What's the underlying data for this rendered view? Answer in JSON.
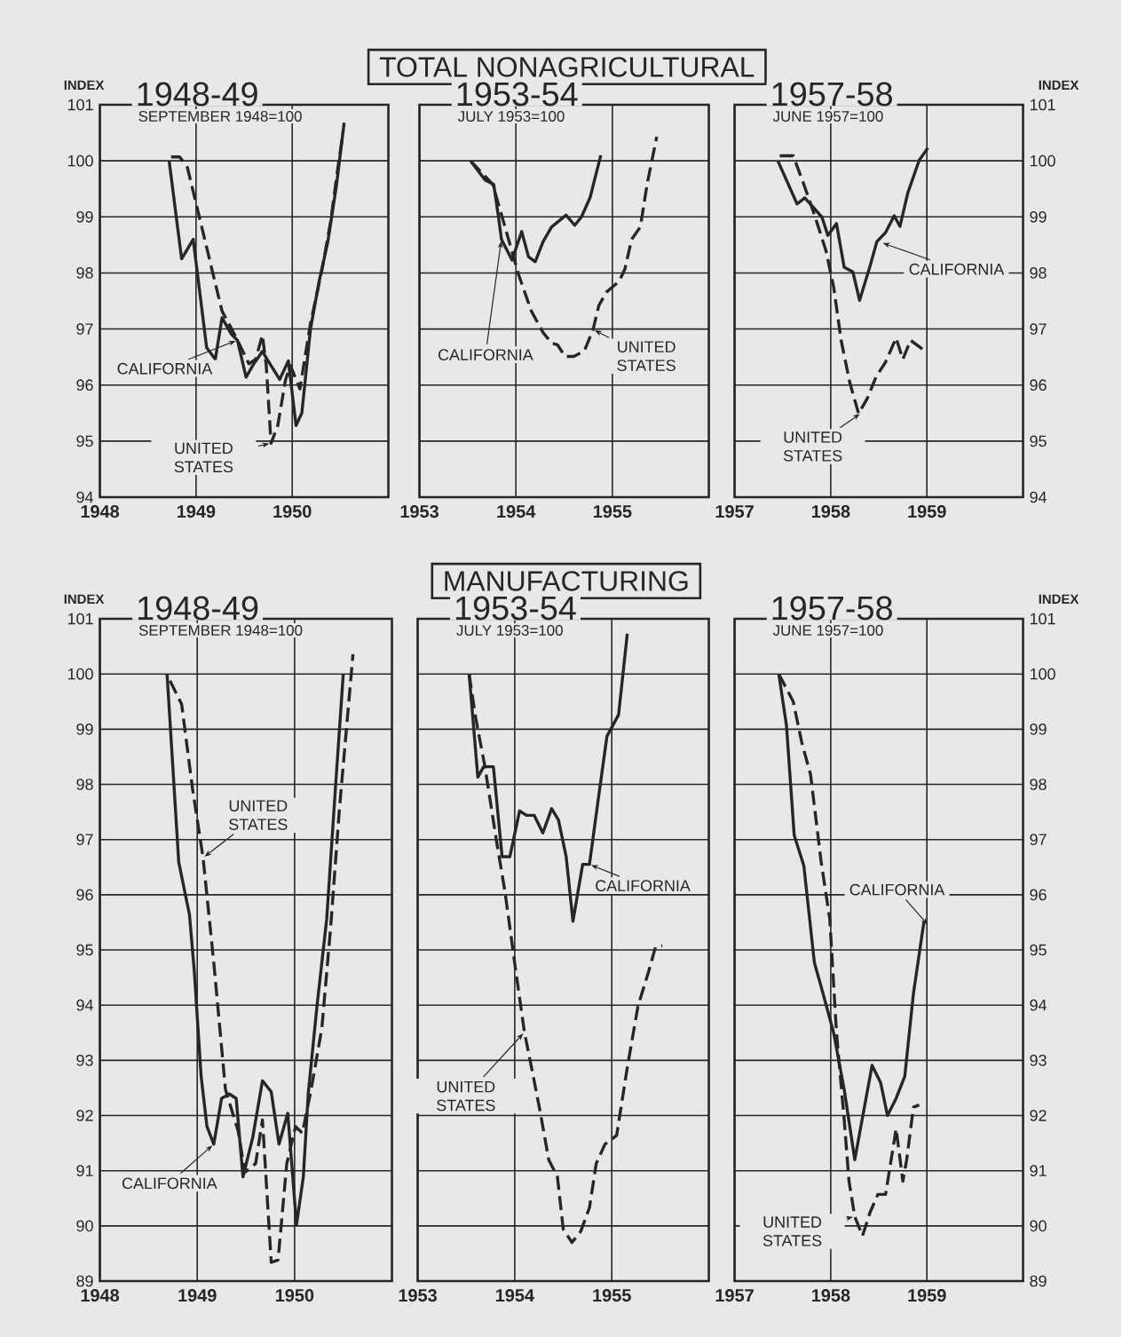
{
  "chart_data": [
    {
      "type": "line",
      "title": "1948-49",
      "subtitle": "SEPTEMBER 1948=100",
      "ylabel": "INDEX",
      "grid": true,
      "xlim": [
        1948,
        1951
      ],
      "ylim": [
        94,
        101
      ],
      "xticks": [
        1948,
        1949,
        1950
      ],
      "yticks": [
        94,
        95,
        96,
        97,
        98,
        99,
        100,
        101
      ],
      "annotations": [
        {
          "text": "CALIFORNIA",
          "x": 1949.43,
          "y": 96.8
        },
        {
          "text": "UNITED STATES",
          "x": 1949.78,
          "y": 94.96
        }
      ],
      "series": [
        {
          "color": "#262626",
          "line_style": "solid",
          "x": [
            1948.72,
            1948.85,
            1948.97,
            1949.11,
            1949.2,
            1949.27,
            1949.37,
            1949.43,
            1949.52,
            1949.59,
            1949.69,
            1949.76,
            1949.87,
            1949.96,
            1950.04,
            1950.1,
            1950.19,
            1950.28,
            1950.37,
            1950.46,
            1950.54
          ],
          "values": [
            100.0,
            98.25,
            98.6,
            96.67,
            96.46,
            97.2,
            96.9,
            96.8,
            96.14,
            96.35,
            96.6,
            96.4,
            96.1,
            96.43,
            95.28,
            95.5,
            97.0,
            97.85,
            98.55,
            99.56,
            100.68
          ]
        },
        {
          "color": "#262626",
          "line_style": "dashed",
          "x": [
            1948.74,
            1948.83,
            1948.91,
            1949.03,
            1949.15,
            1949.27,
            1949.37,
            1949.43,
            1949.55,
            1949.62,
            1949.69,
            1949.73,
            1949.78,
            1949.85,
            1949.93,
            1949.98,
            1950.08,
            1950.19,
            1950.31,
            1950.4,
            1950.48,
            1950.53
          ],
          "values": [
            100.07,
            100.07,
            99.88,
            99.03,
            98.17,
            97.32,
            97.0,
            96.8,
            96.38,
            96.46,
            96.89,
            96.35,
            94.96,
            95.28,
            96.09,
            96.35,
            95.93,
            97.1,
            98.06,
            98.92,
            99.94,
            100.52
          ]
        }
      ]
    },
    {
      "type": "line",
      "title": "1953-54",
      "subtitle": "JULY 1953=100",
      "grid": true,
      "tick_labels": "x",
      "xlim": [
        1953,
        1956
      ],
      "ylim": [
        94,
        101
      ],
      "xticks": [
        1953,
        1954,
        1955
      ],
      "yticks": [
        94,
        95,
        96,
        97,
        98,
        99,
        100,
        101
      ],
      "annotations": [
        "TOTAL NONAGRICULTURAL",
        {
          "text": "CALIFORNIA",
          "x": 1953.85,
          "y": 98.6
        },
        {
          "text": "UNITED STATES",
          "x": 1954.8,
          "y": 96.99
        }
      ],
      "series": [
        {
          "color": "#262626",
          "line_style": "solid",
          "x": [
            1953.53,
            1953.68,
            1953.77,
            1953.82,
            1953.85,
            1953.96,
            1954.06,
            1954.13,
            1954.2,
            1954.28,
            1954.37,
            1954.52,
            1954.61,
            1954.68,
            1954.77,
            1954.88
          ],
          "values": [
            100.0,
            99.66,
            99.58,
            98.99,
            98.6,
            98.23,
            98.74,
            98.29,
            98.2,
            98.55,
            98.82,
            99.03,
            98.85,
            99.0,
            99.35,
            100.1
          ]
        },
        {
          "color": "#262626",
          "line_style": "dashed",
          "x": [
            1953.53,
            1953.76,
            1953.85,
            1953.94,
            1954.03,
            1954.16,
            1954.28,
            1954.37,
            1954.43,
            1954.51,
            1954.6,
            1954.71,
            1954.8,
            1954.86,
            1954.94,
            1955.07,
            1955.13,
            1955.2,
            1955.29,
            1955.36,
            1955.46
          ],
          "values": [
            100.0,
            99.58,
            99.04,
            98.5,
            97.96,
            97.32,
            96.94,
            96.75,
            96.72,
            96.51,
            96.51,
            96.61,
            96.99,
            97.42,
            97.66,
            97.85,
            98.07,
            98.6,
            98.82,
            99.58,
            100.43
          ]
        }
      ]
    },
    {
      "type": "line",
      "title": "1957-58",
      "subtitle": "JUNE 1957=100",
      "grid": true,
      "xlim": [
        1957,
        1960
      ],
      "y2lim": [
        94,
        101
      ],
      "y2label": "INDEX",
      "xticks": [
        1957,
        1958,
        1959
      ],
      "y2ticks": [
        94,
        95,
        96,
        97,
        98,
        99,
        100,
        101
      ],
      "annotations": [
        "CALIFORNIA",
        "UNITED STATES"
      ],
      "series": [
        {
          "color": "#262626",
          "line_style": "solid",
          "axis": "y2",
          "x": [
            1957.45,
            1957.65,
            1957.73,
            1957.83,
            1957.91,
            1957.97,
            1958.06,
            1958.14,
            1958.23,
            1958.3,
            1958.41,
            1958.48,
            1958.57,
            1958.66,
            1958.72,
            1958.8,
            1958.92,
            1959.01
          ],
          "values": [
            100.0,
            99.23,
            99.34,
            99.15,
            98.99,
            98.67,
            98.88,
            98.1,
            98.02,
            97.51,
            98.13,
            98.56,
            98.72,
            99.02,
            98.83,
            99.42,
            100.01,
            100.23
          ]
        },
        {
          "color": "#262626",
          "line_style": "dashed",
          "axis": "y2",
          "x": [
            1957.47,
            1957.61,
            1957.71,
            1957.83,
            1957.95,
            1958.03,
            1958.11,
            1958.2,
            1958.29,
            1958.38,
            1958.47,
            1958.57,
            1958.68,
            1958.75,
            1958.83,
            1958.97
          ],
          "values": [
            100.09,
            100.09,
            99.63,
            99.04,
            98.4,
            97.75,
            96.78,
            96.03,
            95.49,
            95.76,
            96.14,
            96.41,
            96.84,
            96.46,
            96.8,
            96.62
          ]
        }
      ]
    },
    {
      "type": "line",
      "title": "1948-49",
      "subtitle": "SEPTEMBER 1948=100",
      "ylabel": "INDEX",
      "grid": true,
      "xlim": [
        1948,
        1951
      ],
      "ylim": [
        89,
        101
      ],
      "xticks": [
        1948,
        1949,
        1950
      ],
      "yticks": [
        89,
        90,
        91,
        92,
        93,
        94,
        95,
        96,
        97,
        98,
        99,
        100,
        101
      ],
      "annotations": [
        {
          "text": "UNITED STATES",
          "x": 1949.06,
          "y": 96.67
        },
        {
          "text": "CALIFORNIA",
          "x": 1949.17,
          "y": 91.48
        }
      ],
      "series": [
        {
          "color": "#262626",
          "line_style": "solid",
          "x": [
            1948.69,
            1948.81,
            1948.92,
            1948.97,
            1949.04,
            1949.1,
            1949.17,
            1949.25,
            1949.33,
            1949.4,
            1949.47,
            1949.57,
            1949.67,
            1949.76,
            1949.84,
            1949.93,
            1950.02,
            1950.09,
            1950.14,
            1950.23,
            1950.33,
            1950.42,
            1950.5
          ],
          "values": [
            100.0,
            96.59,
            95.64,
            94.61,
            92.71,
            91.8,
            91.48,
            92.31,
            92.39,
            92.31,
            90.89,
            91.6,
            92.63,
            92.43,
            91.48,
            92.04,
            90.02,
            90.89,
            92.39,
            93.98,
            95.56,
            97.94,
            100.0
          ]
        },
        {
          "color": "#262626",
          "line_style": "dashed",
          "x": [
            1948.72,
            1948.84,
            1948.95,
            1949.06,
            1949.17,
            1949.29,
            1949.42,
            1949.49,
            1949.6,
            1949.67,
            1949.76,
            1949.83,
            1949.92,
            1950.01,
            1950.08,
            1950.17,
            1950.28,
            1950.37,
            1950.46,
            1950.6
          ],
          "values": [
            99.88,
            99.45,
            97.94,
            96.67,
            94.77,
            92.47,
            91.72,
            90.97,
            91.13,
            91.92,
            89.34,
            89.38,
            91.13,
            91.8,
            91.68,
            92.47,
            93.58,
            95.4,
            97.54,
            100.36
          ]
        }
      ]
    },
    {
      "type": "line",
      "title": "1953-54",
      "subtitle": "JULY 1953=100",
      "grid": true,
      "tick_labels": "x",
      "xlim": [
        1953,
        1956
      ],
      "ylim": [
        89,
        101
      ],
      "xticks": [
        1953,
        1954,
        1955
      ],
      "yticks": [
        89,
        90,
        91,
        92,
        93,
        94,
        95,
        96,
        97,
        98,
        99,
        100,
        101
      ],
      "annotations": [
        "MANUFACTURING",
        {
          "text": "CALIFORNIA",
          "x": 1954.77,
          "y": 96.55
        },
        {
          "text": "UNITED STATES",
          "x": 1954.1,
          "y": 93.51
        }
      ],
      "series": [
        {
          "color": "#262626",
          "line_style": "solid",
          "x": [
            1953.53,
            1953.62,
            1953.68,
            1953.78,
            1953.87,
            1953.95,
            1954.05,
            1954.12,
            1954.2,
            1954.29,
            1954.38,
            1954.45,
            1954.53,
            1954.6,
            1954.7,
            1954.77,
            1954.86,
            1954.95,
            1955.07,
            1955.16
          ],
          "values": [
            100.0,
            98.13,
            98.32,
            98.32,
            96.69,
            96.69,
            97.52,
            97.44,
            97.44,
            97.12,
            97.56,
            97.36,
            96.69,
            95.52,
            96.55,
            96.55,
            97.72,
            98.87,
            99.26,
            100.73
          ]
        },
        {
          "color": "#262626",
          "line_style": "dashed",
          "x": [
            1953.53,
            1953.6,
            1953.69,
            1953.81,
            1953.9,
            1954.01,
            1954.1,
            1954.19,
            1954.26,
            1954.35,
            1954.44,
            1954.5,
            1954.59,
            1954.68,
            1954.77,
            1954.84,
            1954.93,
            1955.05,
            1955.16,
            1955.27,
            1955.38,
            1955.45,
            1955.52
          ],
          "values": [
            100.0,
            99.18,
            98.35,
            97.0,
            96.05,
            94.63,
            93.51,
            92.72,
            92.09,
            91.2,
            90.89,
            89.94,
            89.7,
            89.9,
            90.33,
            91.13,
            91.48,
            91.64,
            92.87,
            93.98,
            94.61,
            95.05,
            95.08
          ]
        }
      ]
    },
    {
      "type": "line",
      "title": "1957-58",
      "subtitle": "JUNE 1957=100",
      "grid": true,
      "xlim": [
        1957,
        1960
      ],
      "y2lim": [
        89,
        101
      ],
      "y2label": "INDEX",
      "xticks": [
        1957,
        1958,
        1959
      ],
      "y2ticks": [
        89,
        90,
        91,
        92,
        93,
        94,
        95,
        96,
        97,
        98,
        99,
        100,
        101
      ],
      "annotations": [
        "CALIFORNIA",
        "UNITED STATES"
      ],
      "series": [
        {
          "color": "#262626",
          "line_style": "solid",
          "axis": "y2",
          "x": [
            1957.46,
            1957.54,
            1957.62,
            1957.72,
            1957.83,
            1957.92,
            1958.03,
            1958.14,
            1958.25,
            1958.43,
            1958.52,
            1958.59,
            1958.68,
            1958.77,
            1958.86,
            1958.97
          ],
          "values": [
            100.0,
            99.06,
            97.08,
            96.53,
            94.77,
            94.21,
            93.5,
            92.47,
            91.2,
            92.91,
            92.59,
            92.0,
            92.31,
            92.71,
            94.21,
            95.52
          ]
        },
        {
          "color": "#262626",
          "line_style": "dashed",
          "axis": "y2",
          "x": [
            1957.46,
            1957.61,
            1957.7,
            1957.79,
            1957.9,
            1957.99,
            1958.06,
            1958.14,
            1958.19,
            1958.25,
            1958.33,
            1958.41,
            1958.49,
            1958.57,
            1958.68,
            1958.75,
            1958.79,
            1958.86,
            1958.92
          ],
          "values": [
            100.0,
            99.5,
            98.75,
            98.18,
            96.6,
            95.56,
            93.5,
            91.92,
            90.81,
            90.17,
            89.82,
            90.25,
            90.57,
            90.57,
            91.76,
            90.81,
            91.2,
            92.15,
            92.19
          ]
        }
      ]
    }
  ]
}
